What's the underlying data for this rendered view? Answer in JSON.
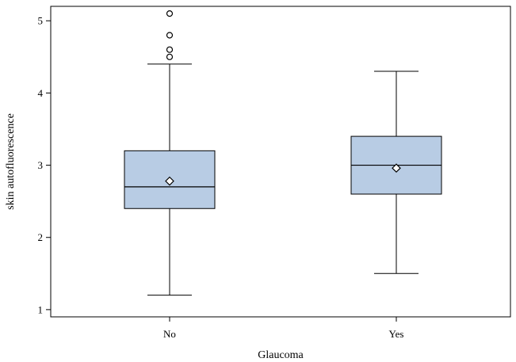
{
  "chart_data": {
    "type": "boxplot",
    "title": "",
    "xlabel": "Glaucoma",
    "ylabel": "skin autofluorescence",
    "categories": [
      "No",
      "Yes"
    ],
    "yticks": [
      1,
      2,
      3,
      4,
      5
    ],
    "ylim": [
      0.9,
      5.2
    ],
    "grid": false,
    "boxes": [
      {
        "category": "No",
        "whisker_low": 1.2,
        "q1": 2.4,
        "median": 2.7,
        "q3": 3.2,
        "whisker_high": 4.4,
        "mean": 2.78,
        "outliers": [
          4.5,
          4.6,
          4.8,
          5.1
        ]
      },
      {
        "category": "Yes",
        "whisker_low": 1.5,
        "q1": 2.6,
        "median": 3.0,
        "q3": 3.4,
        "whisker_high": 4.3,
        "mean": 2.96,
        "outliers": []
      }
    ],
    "colors": {
      "box_fill": "#b8cce4",
      "stroke": "#000000"
    }
  }
}
